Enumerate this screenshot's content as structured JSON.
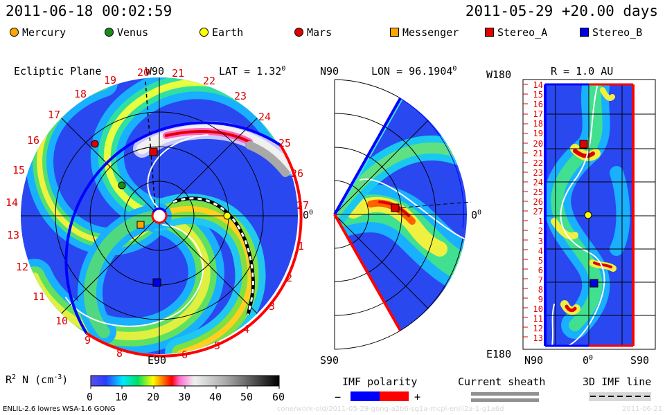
{
  "header": {
    "left_timestamp": "2011-06-18 00:02:59",
    "right_timestamp": "2011-05-29 +20.00 days"
  },
  "legend": {
    "items": [
      {
        "name": "Mercury",
        "shape": "circle",
        "color": "#ffa500"
      },
      {
        "name": "Venus",
        "shape": "circle",
        "color": "#1a8c1a"
      },
      {
        "name": "Earth",
        "shape": "circle",
        "color": "#ffff00"
      },
      {
        "name": "Mars",
        "shape": "circle",
        "color": "#e00000"
      },
      {
        "name": "Messenger",
        "shape": "square",
        "color": "#ffa500"
      },
      {
        "name": "Stereo_A",
        "shape": "square",
        "color": "#e00000"
      },
      {
        "name": "Stereo_B",
        "shape": "square",
        "color": "#0000e0"
      }
    ]
  },
  "ecliptic_panel": {
    "title": "Ecliptic Plane",
    "top_label": "W90",
    "bottom_label": "E90",
    "lat_label": "LAT = 1.32",
    "lat_deg_sup": "0",
    "right_label": "0",
    "right_label_sup": "0",
    "rotation_numbers": [
      "20",
      "21",
      "22",
      "23",
      "24",
      "25",
      "26",
      "27",
      "1",
      "2",
      "3",
      "4",
      "5",
      "6",
      "7",
      "8",
      "9",
      "10",
      "11",
      "12",
      "13",
      "14",
      "15",
      "16",
      "17",
      "18",
      "19"
    ]
  },
  "meridional_panel": {
    "top_label": "N90",
    "bottom_label": "S90",
    "lon_label": "LON = 96.1904",
    "lon_deg_sup": "0",
    "right_label": "0",
    "right_label_sup": "0"
  },
  "synoptic_panel": {
    "radius_label": "R = 1.0 AU",
    "top_left_label": "W180",
    "bottom_left_label": "E180",
    "x_left": "N90",
    "x_center": "0",
    "x_center_sup": "0",
    "x_right": "S90",
    "rotation_numbers": [
      "14",
      "15",
      "16",
      "17",
      "18",
      "19",
      "20",
      "21",
      "22",
      "23",
      "24",
      "25",
      "26",
      "27",
      "1",
      "2",
      "3",
      "4",
      "5",
      "6",
      "7",
      "8",
      "9",
      "10",
      "11",
      "12",
      "13"
    ]
  },
  "colorbar": {
    "label": "R",
    "label_sup": "2",
    "label_rest": " N (cm",
    "label_unit_sup": "-3",
    "label_close": ")",
    "ticks": [
      "0",
      "10",
      "20",
      "30",
      "40",
      "50",
      "60"
    ],
    "range": [
      0,
      60
    ]
  },
  "imf_polarity": {
    "title": "IMF polarity",
    "minus": "−",
    "plus": "+",
    "negative_color": "#0000ff",
    "positive_color": "#ff0000"
  },
  "current_sheath": {
    "title": "Current sheath"
  },
  "imf_line": {
    "title": "3D IMF line"
  },
  "footer": {
    "model_text": "ENLIL-2.6 lowres WSA-1.6 GONG",
    "path_text": "cone/work-old/2011-05-29-gong-a2b6-sg1a-mcpl-enlil2a-1-g1a6d",
    "date_text": "2011-06-21"
  }
}
